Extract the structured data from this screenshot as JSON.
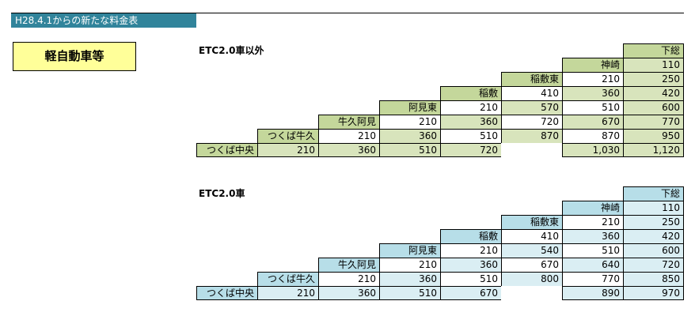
{
  "header": {
    "banner": "H28.4.1からの新たな料金表",
    "vehicle_class": "軽自動車等"
  },
  "colors": {
    "banner_bg": "#31849b",
    "vehicle_bg": "#ffff99",
    "etc_other_label": "#c4d79b",
    "etc_other_fill": "#d8e4bc",
    "etc2_label": "#b7dee8",
    "etc2_fill": "#daeef3",
    "white": "#ffffff"
  },
  "tables": [
    {
      "title": "ETC2.0車以外",
      "stations": [
        "つくば中央",
        "つくば牛久",
        "牛久阿見",
        "阿見東",
        "稲敷",
        "稲敷東",
        "神崎",
        "下総"
      ],
      "rows": [
        [
          "210"
        ],
        [
          "210",
          "360"
        ],
        [
          "210",
          "360",
          "510"
        ],
        [
          "210",
          "360",
          "510",
          "720"
        ],
        [
          "410",
          "570",
          "720",
          "870"
        ],
        [
          "210",
          "360",
          "510",
          "670",
          "870",
          "1,030"
        ],
        [
          "110",
          "250",
          "420",
          "600",
          "770",
          "950",
          "1,120"
        ]
      ]
    },
    {
      "title": "ETC2.0車",
      "stations": [
        "つくば中央",
        "つくば牛久",
        "牛久阿見",
        "阿見東",
        "稲敷",
        "稲敷東",
        "神崎",
        "下総"
      ],
      "rows": [
        [
          "210"
        ],
        [
          "210",
          "360"
        ],
        [
          "210",
          "360",
          "510"
        ],
        [
          "210",
          "360",
          "510",
          "670"
        ],
        [
          "410",
          "540",
          "670",
          "800"
        ],
        [
          "210",
          "360",
          "510",
          "640",
          "770",
          "890"
        ],
        [
          "110",
          "250",
          "420",
          "600",
          "720",
          "850",
          "970"
        ]
      ]
    }
  ]
}
